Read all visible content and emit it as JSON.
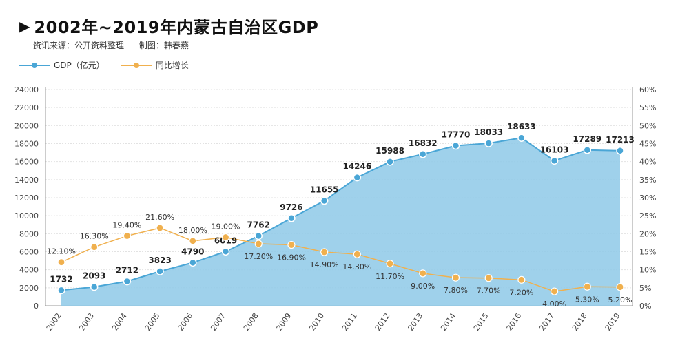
{
  "header": {
    "marker": "▶",
    "title": "2002年~2019年内蒙古自治区GDP",
    "source": "资讯来源：公开资料整理",
    "author": "制图：韩春燕"
  },
  "colors": {
    "gdp_line": "#4aa6d6",
    "gdp_fill": "#8ec9e8",
    "growth_line": "#f0b04e",
    "grid": "#e2e2e2",
    "axis_text": "#444444"
  },
  "chart_data": {
    "type": "area",
    "title": "2002年~2019年内蒙古自治区GDP",
    "categories": [
      "2002",
      "2003",
      "2004",
      "2005",
      "2006",
      "2007",
      "2008",
      "2009",
      "2010",
      "2011",
      "2012",
      "2013",
      "2014",
      "2015",
      "2016",
      "2017",
      "2018",
      "2019"
    ],
    "series": [
      {
        "name": "GDP（亿元）",
        "axis": "left",
        "render": "area-line",
        "values": [
          1732,
          2093,
          2712,
          3823,
          4790,
          6019,
          7762,
          9726,
          11655,
          14246,
          15988,
          16832,
          17770,
          18033,
          18633,
          16103,
          17289,
          17213
        ],
        "labels": [
          "1732",
          "2093",
          "2712",
          "3823",
          "4790",
          "6019",
          "7762",
          "9726",
          "11655",
          "14246",
          "15988",
          "16832",
          "17770",
          "18033",
          "18633",
          "16103",
          "17289",
          "17213"
        ]
      },
      {
        "name": "同比增长",
        "axis": "right",
        "render": "line",
        "values": [
          12.1,
          16.3,
          19.4,
          21.6,
          18.0,
          19.0,
          17.2,
          16.9,
          14.9,
          14.3,
          11.7,
          9.0,
          7.8,
          7.7,
          7.2,
          4.0,
          5.3,
          5.2
        ],
        "labels": [
          "12.10%",
          "16.30%",
          "19.40%",
          "21.60%",
          "18.00%",
          "19.00%",
          "17.20%",
          "16.90%",
          "14.90%",
          "14.30%",
          "11.70%",
          "9.00%",
          "7.80%",
          "7.70%",
          "7.20%",
          "4.00%",
          "5.30%",
          "5.20%"
        ]
      }
    ],
    "ylim_left": [
      0,
      24000
    ],
    "yticks_left": [
      "0",
      "2000",
      "4000",
      "6000",
      "8000",
      "10000",
      "12000",
      "14000",
      "16000",
      "18000",
      "20000",
      "22000",
      "24000"
    ],
    "ylim_right": [
      0,
      60
    ],
    "yticks_right": [
      "0%",
      "5%",
      "10%",
      "15%",
      "20%",
      "25%",
      "30%",
      "35%",
      "40%",
      "45%",
      "50%",
      "55%",
      "60%"
    ],
    "grid": true,
    "legend_position": "top-left"
  }
}
